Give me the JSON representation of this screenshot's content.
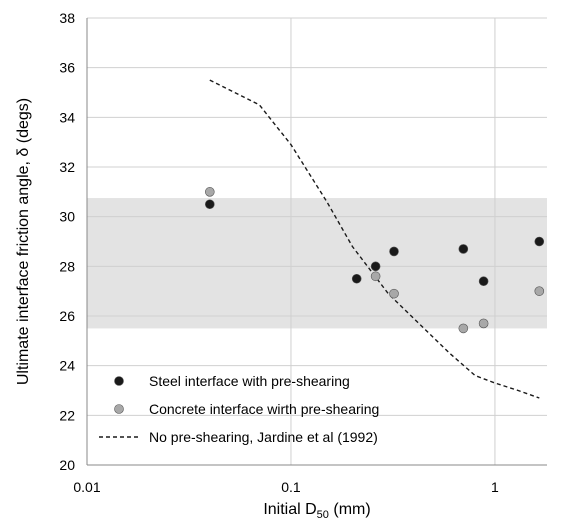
{
  "chart_data": {
    "type": "scatter",
    "title": "",
    "xlabel": {
      "main": "Initial D",
      "sub": "50",
      "suffix": " (mm)"
    },
    "ylabel": "Ultimate interface friction angle, δ (degs)",
    "xscale": "log",
    "xlim": [
      0.01,
      1.8
    ],
    "ylim": [
      20,
      38
    ],
    "x_ticks": [
      {
        "value": 0.01,
        "label": "0.01"
      },
      {
        "value": 0.1,
        "label": "0.1"
      },
      {
        "value": 1,
        "label": "1"
      }
    ],
    "y_ticks": [
      {
        "value": 20,
        "label": "20"
      },
      {
        "value": 22,
        "label": "22"
      },
      {
        "value": 24,
        "label": "24"
      },
      {
        "value": 26,
        "label": "26"
      },
      {
        "value": 28,
        "label": "28"
      },
      {
        "value": 30,
        "label": "30"
      },
      {
        "value": 32,
        "label": "32"
      },
      {
        "value": 34,
        "label": "34"
      },
      {
        "value": 36,
        "label": "36"
      },
      {
        "value": 38,
        "label": "38"
      }
    ],
    "grid": true,
    "shaded_band": {
      "y_min": 25.5,
      "y_max": 30.75,
      "color": "#e3e3e3"
    },
    "series": [
      {
        "name": "Steel interface with pre-shearing",
        "kind": "scatter",
        "color": "#1a1a1a",
        "points": [
          {
            "x": 0.04,
            "y": 30.5
          },
          {
            "x": 0.21,
            "y": 27.5
          },
          {
            "x": 0.26,
            "y": 28.0
          },
          {
            "x": 0.32,
            "y": 28.6
          },
          {
            "x": 0.7,
            "y": 28.7
          },
          {
            "x": 0.88,
            "y": 27.4
          },
          {
            "x": 1.65,
            "y": 29.0
          }
        ]
      },
      {
        "name": "Concrete interface wirth pre-shearing",
        "kind": "scatter",
        "color": "#a8a8a8",
        "points": [
          {
            "x": 0.04,
            "y": 31.0
          },
          {
            "x": 0.26,
            "y": 27.6
          },
          {
            "x": 0.32,
            "y": 26.9
          },
          {
            "x": 0.7,
            "y": 25.5
          },
          {
            "x": 0.88,
            "y": 25.7
          },
          {
            "x": 1.65,
            "y": 27.0
          }
        ]
      },
      {
        "name": "No pre-shearing, Jardine et al (1992)",
        "kind": "line",
        "dash": true,
        "color": "#1a1a1a",
        "points": [
          {
            "x": 0.04,
            "y": 35.5
          },
          {
            "x": 0.05,
            "y": 35.1
          },
          {
            "x": 0.07,
            "y": 34.5
          },
          {
            "x": 0.1,
            "y": 32.9
          },
          {
            "x": 0.15,
            "y": 30.6
          },
          {
            "x": 0.2,
            "y": 28.8
          },
          {
            "x": 0.3,
            "y": 26.9
          },
          {
            "x": 0.4,
            "y": 25.9
          },
          {
            "x": 0.6,
            "y": 24.5
          },
          {
            "x": 0.8,
            "y": 23.6
          },
          {
            "x": 1.0,
            "y": 23.3
          },
          {
            "x": 1.3,
            "y": 23.0
          },
          {
            "x": 1.65,
            "y": 22.7
          }
        ]
      }
    ],
    "legend": {
      "position": "bottom-left"
    }
  }
}
